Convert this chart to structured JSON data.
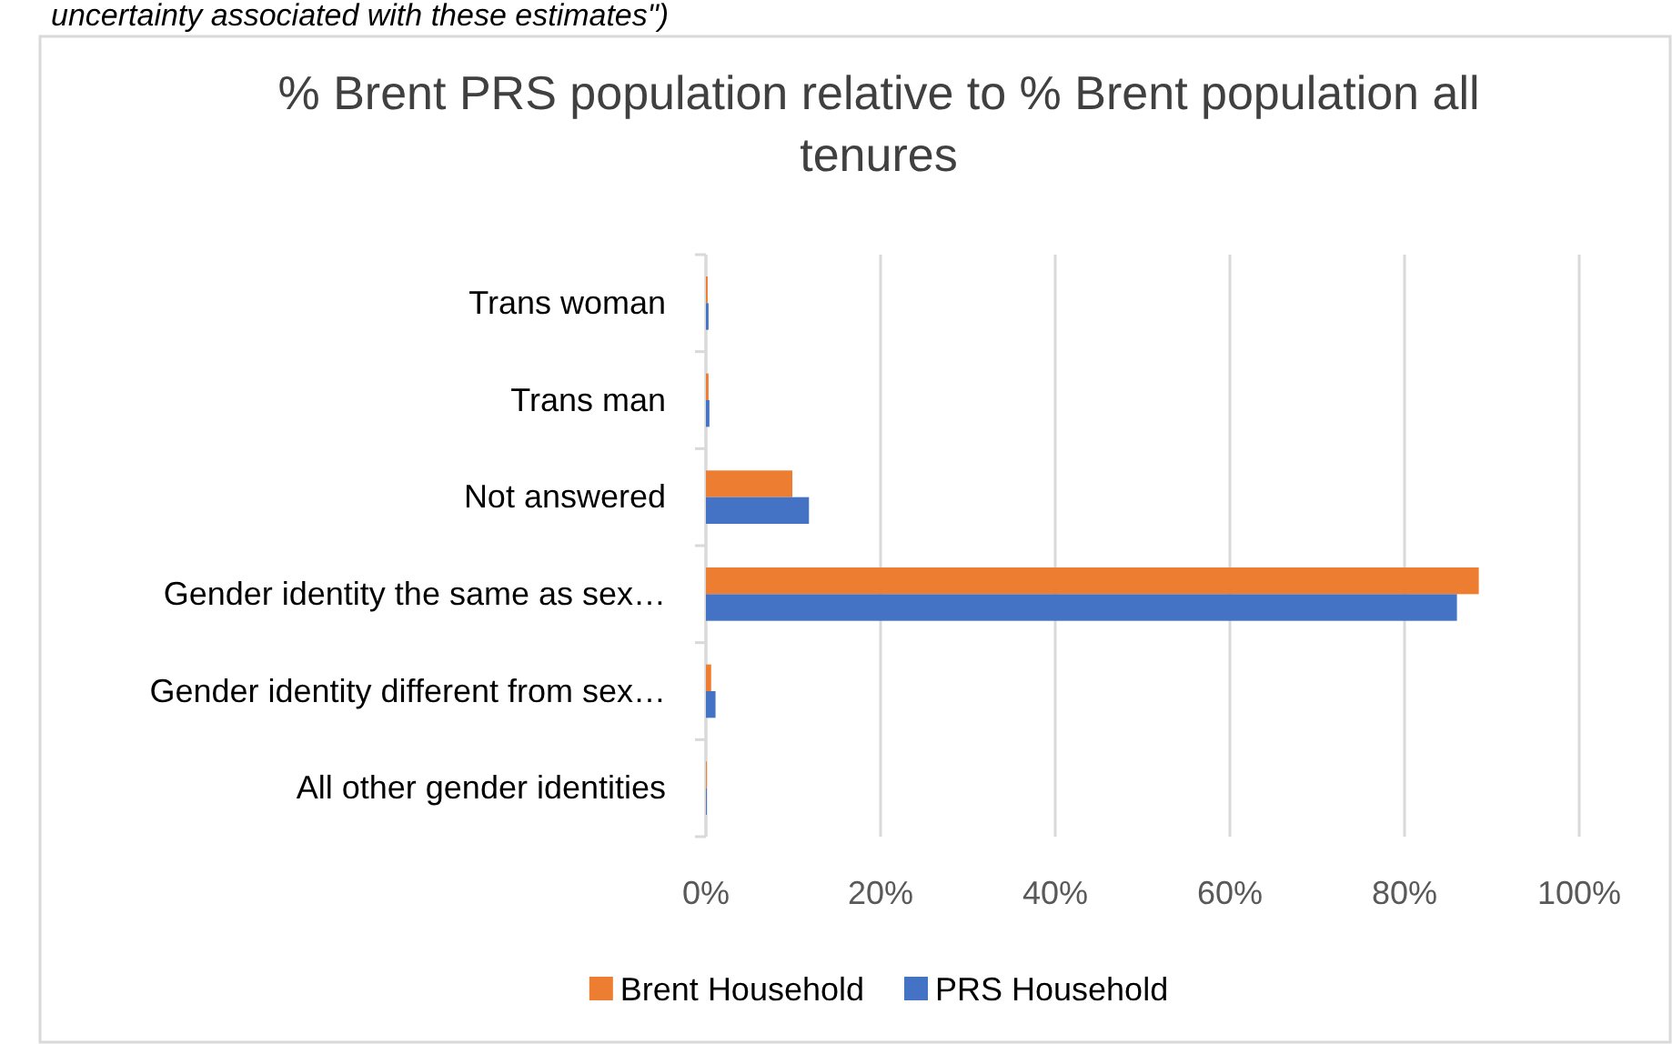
{
  "chart_data": {
    "type": "bar",
    "orientation": "horizontal",
    "title": "% Brent PRS population relative to % Brent population all tenures",
    "annotations": [
      "uncertainty associated with these estimates\")"
    ],
    "categories": [
      "Trans woman",
      "Trans man",
      "Not answered",
      "Gender identity the same as sex…",
      "Gender identity different from sex…",
      "All other gender identities"
    ],
    "series": [
      {
        "name": "Brent Household",
        "color": "#ed7d31",
        "values": [
          0.2,
          0.3,
          9.9,
          88.5,
          0.6,
          0.1
        ]
      },
      {
        "name": "PRS Household",
        "color": "#4472c4",
        "values": [
          0.3,
          0.4,
          11.8,
          86,
          1.1,
          0.1
        ]
      }
    ],
    "xlim": [
      0,
      100
    ],
    "xticks": [
      {
        "value": 0,
        "label": "0%"
      },
      {
        "value": 20,
        "label": "20%"
      },
      {
        "value": 40,
        "label": "40%"
      },
      {
        "value": 60,
        "label": "60%"
      },
      {
        "value": 80,
        "label": "80%"
      },
      {
        "value": 100,
        "label": "100%"
      }
    ],
    "grid": "x",
    "legend": "bottom"
  }
}
